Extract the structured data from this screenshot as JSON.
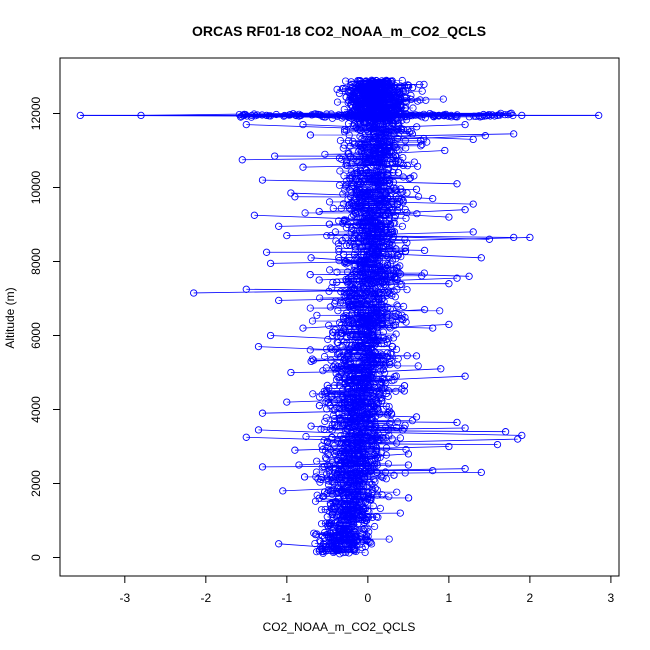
{
  "chart_data": {
    "type": "scatter",
    "title": "ORCAS RF01-18 CO2_NOAA_m_CO2_QCLS",
    "xlabel": "CO2_NOAA_m_CO2_QCLS",
    "ylabel": "Altitude (m)",
    "xlim": [
      -3.8,
      3.1
    ],
    "ylim": [
      -500,
      13500
    ],
    "xticks": [
      -3,
      -2,
      -1,
      0,
      1,
      2,
      3
    ],
    "yticks": [
      0,
      2000,
      4000,
      6000,
      8000,
      10000,
      12000
    ],
    "xtick_labels": [
      "-3",
      "-2",
      "-1",
      "0",
      "1",
      "2",
      "3"
    ],
    "ytick_labels": [
      "0",
      "2000",
      "4000",
      "6000",
      "8000",
      "10000",
      "12000"
    ],
    "grid": false,
    "legend": "none",
    "series_color": "#0000ff",
    "marker": "open-circle",
    "connected_by_lines": true,
    "center_profile": [
      [
        -0.35,
        0
      ],
      [
        -0.3,
        500
      ],
      [
        -0.25,
        1000
      ],
      [
        -0.22,
        1500
      ],
      [
        -0.2,
        2000
      ],
      [
        -0.17,
        2500
      ],
      [
        -0.14,
        3000
      ],
      [
        -0.12,
        3500
      ],
      [
        -0.1,
        4000
      ],
      [
        -0.08,
        4500
      ],
      [
        -0.06,
        5000
      ],
      [
        -0.05,
        5500
      ],
      [
        -0.04,
        6000
      ],
      [
        -0.02,
        6500
      ],
      [
        0.0,
        7000
      ],
      [
        0.02,
        7500
      ],
      [
        0.04,
        8000
      ],
      [
        0.05,
        8500
      ],
      [
        0.05,
        9000
      ],
      [
        0.06,
        9500
      ],
      [
        0.07,
        10000
      ],
      [
        0.08,
        10500
      ],
      [
        0.1,
        11000
      ],
      [
        0.12,
        11500
      ],
      [
        0.15,
        12000
      ],
      [
        0.2,
        12500
      ],
      [
        0.25,
        12900
      ]
    ],
    "outliers": [
      [
        -3.55,
        11950
      ],
      [
        -2.8,
        11950
      ],
      [
        -2.15,
        7150
      ],
      [
        -1.5,
        7250
      ],
      [
        -1.55,
        10750
      ],
      [
        -1.5,
        3250
      ],
      [
        -1.15,
        10850
      ],
      [
        -1.3,
        2450
      ],
      [
        -0.8,
        10550
      ],
      [
        -0.95,
        9850
      ],
      [
        -1.2,
        6000
      ],
      [
        -1.35,
        5700
      ],
      [
        -1.3,
        3900
      ],
      [
        -1.0,
        4200
      ],
      [
        -1.05,
        1800
      ],
      [
        -0.85,
        2500
      ],
      [
        -1.1,
        370
      ],
      [
        -0.9,
        2900
      ],
      [
        -1.2,
        7950
      ],
      [
        -1.0,
        8700
      ],
      [
        -1.1,
        6950
      ],
      [
        -0.7,
        5300
      ],
      [
        0.5,
        2500
      ],
      [
        0.8,
        2350
      ],
      [
        1.2,
        2400
      ],
      [
        1.4,
        2300
      ],
      [
        1.0,
        3000
      ],
      [
        1.2,
        3500
      ],
      [
        1.7,
        3400
      ],
      [
        1.9,
        3300
      ],
      [
        1.85,
        3200
      ],
      [
        1.6,
        3050
      ],
      [
        1.1,
        3650
      ],
      [
        1.2,
        4900
      ],
      [
        0.9,
        5100
      ],
      [
        0.8,
        6200
      ],
      [
        1.0,
        6300
      ],
      [
        1.1,
        7550
      ],
      [
        1.0,
        7400
      ],
      [
        1.25,
        7600
      ],
      [
        1.4,
        8100
      ],
      [
        1.5,
        8600
      ],
      [
        1.8,
        8650
      ],
      [
        2.0,
        8650
      ],
      [
        1.3,
        8800
      ],
      [
        1.0,
        9200
      ],
      [
        1.2,
        9400
      ],
      [
        1.3,
        9550
      ],
      [
        0.8,
        9700
      ],
      [
        1.1,
        10100
      ],
      [
        1.3,
        11300
      ],
      [
        1.45,
        11400
      ],
      [
        1.8,
        11450
      ],
      [
        1.2,
        11700
      ],
      [
        1.6,
        11950
      ],
      [
        2.85,
        11950
      ],
      [
        1.9,
        11950
      ],
      [
        -1.4,
        9250
      ],
      [
        -1.1,
        8950
      ],
      [
        -0.9,
        9750
      ],
      [
        -1.5,
        11700
      ],
      [
        -0.8,
        11700
      ],
      [
        -1.25,
        11950
      ],
      [
        0.55,
        11450
      ],
      [
        0.95,
        11000
      ],
      [
        -1.3,
        10200
      ],
      [
        0.6,
        9950
      ],
      [
        -0.6,
        9350
      ],
      [
        0.7,
        8300
      ],
      [
        -0.7,
        8100
      ],
      [
        -1.25,
        8250
      ],
      [
        -0.6,
        7500
      ],
      [
        0.7,
        6700
      ],
      [
        -0.8,
        6200
      ],
      [
        0.6,
        5450
      ],
      [
        -0.95,
        5000
      ],
      [
        0.45,
        4500
      ],
      [
        -0.5,
        4650
      ],
      [
        0.6,
        3800
      ],
      [
        -0.7,
        3550
      ],
      [
        -1.35,
        3450
      ],
      [
        0.5,
        2800
      ],
      [
        -0.6,
        1600
      ],
      [
        0.4,
        1200
      ],
      [
        -0.5,
        1100
      ]
    ]
  }
}
